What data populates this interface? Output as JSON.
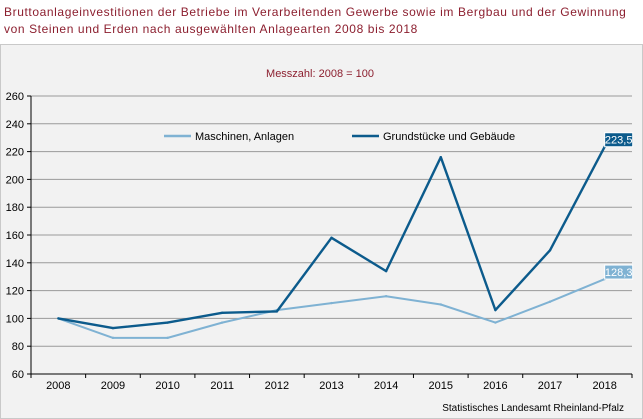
{
  "title": "Bruttoanlageinvestitionen der Betriebe im Verarbeitenden Gewerbe sowie im Bergbau und der Gewinnung von Steinen und Erden nach ausgewählten Anlagearten 2008 bis 2018",
  "source": "Statistisches Landesamt Rheinland-Pfalz",
  "colors": {
    "title": "#8c1f2f",
    "plot_bg": "#f2f2f2",
    "grid": "#9a9a9a"
  },
  "chart_data": {
    "type": "line",
    "subtitle": "Messzahl: 2008 = 100",
    "x": [
      "2008",
      "2009",
      "2010",
      "2011",
      "2012",
      "2013",
      "2014",
      "2015",
      "2016",
      "2017",
      "2018"
    ],
    "ylim": [
      60,
      260
    ],
    "yticks": [
      60,
      80,
      100,
      120,
      140,
      160,
      180,
      200,
      220,
      240,
      260
    ],
    "grid": true,
    "legend_placement": "top",
    "series": [
      {
        "name": "Maschinen, Anlagen",
        "color": "#7fb2d3",
        "values": [
          100,
          86,
          86,
          97,
          106,
          111,
          116,
          110,
          97,
          112,
          128.3
        ],
        "end_label": "128,3"
      },
      {
        "name": "Grundstücke und Gebäude",
        "color": "#0c5b8c",
        "values": [
          100,
          93,
          97,
          104,
          105,
          158,
          134,
          216,
          106,
          149,
          223.5
        ],
        "end_label": "223,5"
      }
    ]
  }
}
